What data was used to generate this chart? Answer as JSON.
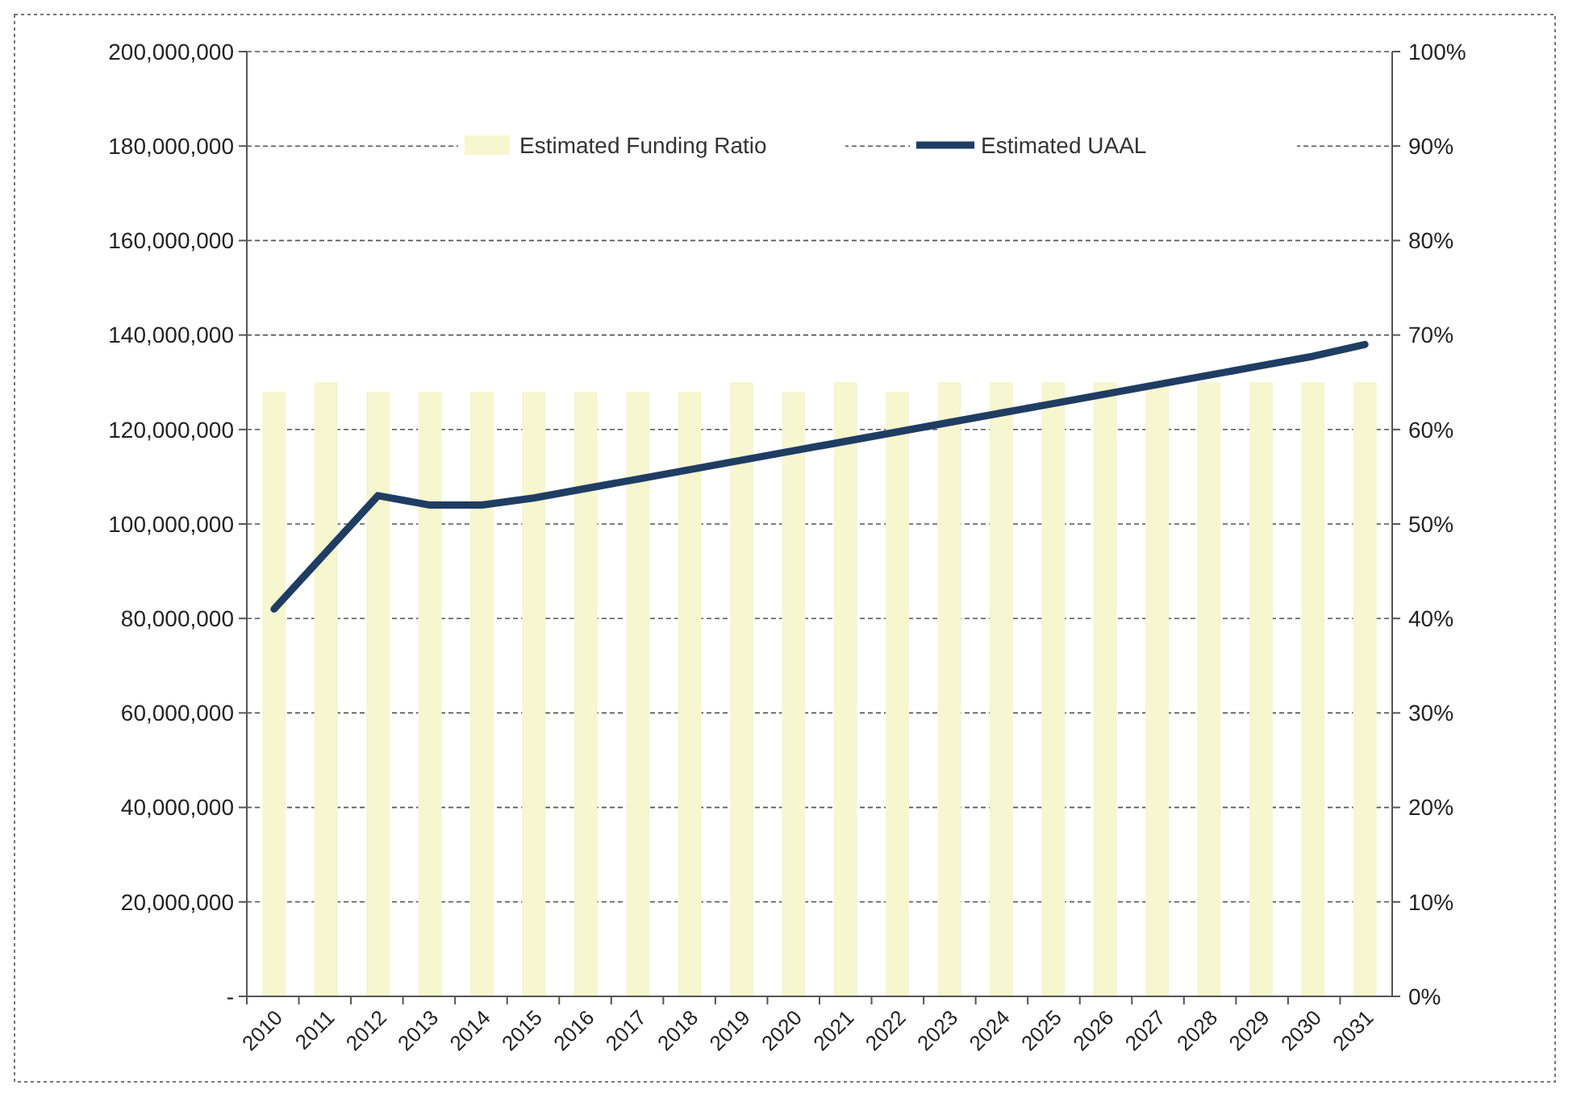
{
  "chart_data": {
    "type": "bar",
    "categories": [
      "2010",
      "2011",
      "2012",
      "2013",
      "2014",
      "2015",
      "2016",
      "2017",
      "2018",
      "2019",
      "2020",
      "2021",
      "2022",
      "2023",
      "2024",
      "2025",
      "2026",
      "2027",
      "2028",
      "2029",
      "2030",
      "2031"
    ],
    "series": [
      {
        "name": "Estimated Funding Ratio",
        "axis": "y2",
        "color": "#f6f6cf",
        "values": [
          64,
          65,
          64,
          64,
          64,
          64,
          64,
          64,
          64,
          65,
          64,
          65,
          64,
          65,
          65,
          65,
          65,
          65,
          65,
          65,
          65,
          65
        ]
      },
      {
        "name": "Estimated UAAL",
        "type": "line",
        "color": "#1f3d63",
        "values": [
          82000000,
          94000000,
          106000000,
          104000000,
          104000000,
          105500000,
          107500000,
          109500000,
          111500000,
          113500000,
          115500000,
          117500000,
          119500000,
          121500000,
          123500000,
          125500000,
          127500000,
          129500000,
          131500000,
          133500000,
          135500000,
          138000000
        ]
      }
    ],
    "ylim": [
      0,
      200000000
    ],
    "yticks": [
      {
        "value": 0,
        "label": "-"
      },
      {
        "value": 20000000,
        "label": "20,000,000"
      },
      {
        "value": 40000000,
        "label": "40,000,000"
      },
      {
        "value": 60000000,
        "label": "60,000,000"
      },
      {
        "value": 80000000,
        "label": "80,000,000"
      },
      {
        "value": 100000000,
        "label": "100,000,000"
      },
      {
        "value": 120000000,
        "label": "120,000,000"
      },
      {
        "value": 140000000,
        "label": "140,000,000"
      },
      {
        "value": 160000000,
        "label": "160,000,000"
      },
      {
        "value": 180000000,
        "label": "180,000,000"
      },
      {
        "value": 200000000,
        "label": "200,000,000"
      }
    ],
    "y2lim": [
      0,
      100
    ],
    "y2ticks": [
      {
        "value": 0,
        "label": "0%"
      },
      {
        "value": 10,
        "label": "10%"
      },
      {
        "value": 20,
        "label": "20%"
      },
      {
        "value": 30,
        "label": "30%"
      },
      {
        "value": 40,
        "label": "40%"
      },
      {
        "value": 50,
        "label": "50%"
      },
      {
        "value": 60,
        "label": "60%"
      },
      {
        "value": 70,
        "label": "70%"
      },
      {
        "value": 80,
        "label": "80%"
      },
      {
        "value": 90,
        "label": "90%"
      },
      {
        "value": 100,
        "label": "100%"
      }
    ],
    "grid": "y",
    "legend": "top",
    "line_style": "solid",
    "marker": "none"
  }
}
